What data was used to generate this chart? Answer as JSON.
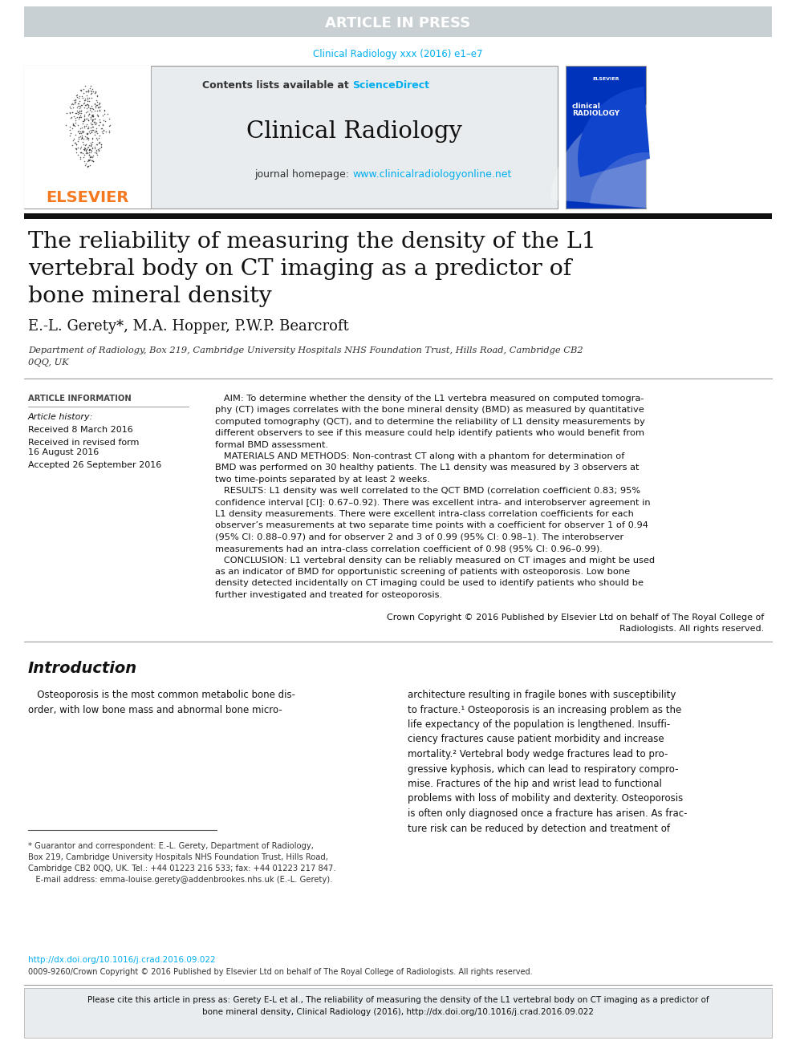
{
  "article_in_press_text": "ARTICLE IN PRESS",
  "article_in_press_bg": "#c8d0d4",
  "journal_ref": "Clinical Radiology xxx (2016) e1–e7",
  "journal_ref_color": "#00aeef",
  "sciencedirect_color": "#00aeef",
  "journal_name": "Clinical Radiology",
  "journal_url": "www.clinicalradiologyonline.net",
  "journal_url_color": "#00aeef",
  "header_bg": "#e8ecee",
  "paper_title_line1": "The reliability of measuring the density of the L1",
  "paper_title_line2": "vertebral body on CT imaging as a predictor of",
  "paper_title_line3": "bone mineral density",
  "authors": "E.-L. Gerety*, M.A. Hopper, P.W.P. Bearcroft",
  "affiliation_line1": "Department of Radiology, Box 219, Cambridge University Hospitals NHS Foundation Trust, Hills Road, Cambridge CB2",
  "affiliation_line2": "0QQ, UK",
  "article_info_label": "ARTICLE INFORMATION",
  "article_history_label": "Article history:",
  "received_label": "Received 8 March 2016",
  "revised_label1": "Received in revised form",
  "revised_label2": "16 August 2016",
  "accepted_label": "Accepted 26 September 2016",
  "doi_text": "http://dx.doi.org/10.1016/j.crad.2016.09.022",
  "doi_color": "#00aeef",
  "issn_text": "0009-9260/Crown Copyright © 2016 Published by Elsevier Ltd on behalf of The Royal College of Radiologists. All rights reserved.",
  "cite_box_bg": "#e8ecee",
  "elsevier_orange": "#f47920",
  "bg_white": "#ffffff"
}
